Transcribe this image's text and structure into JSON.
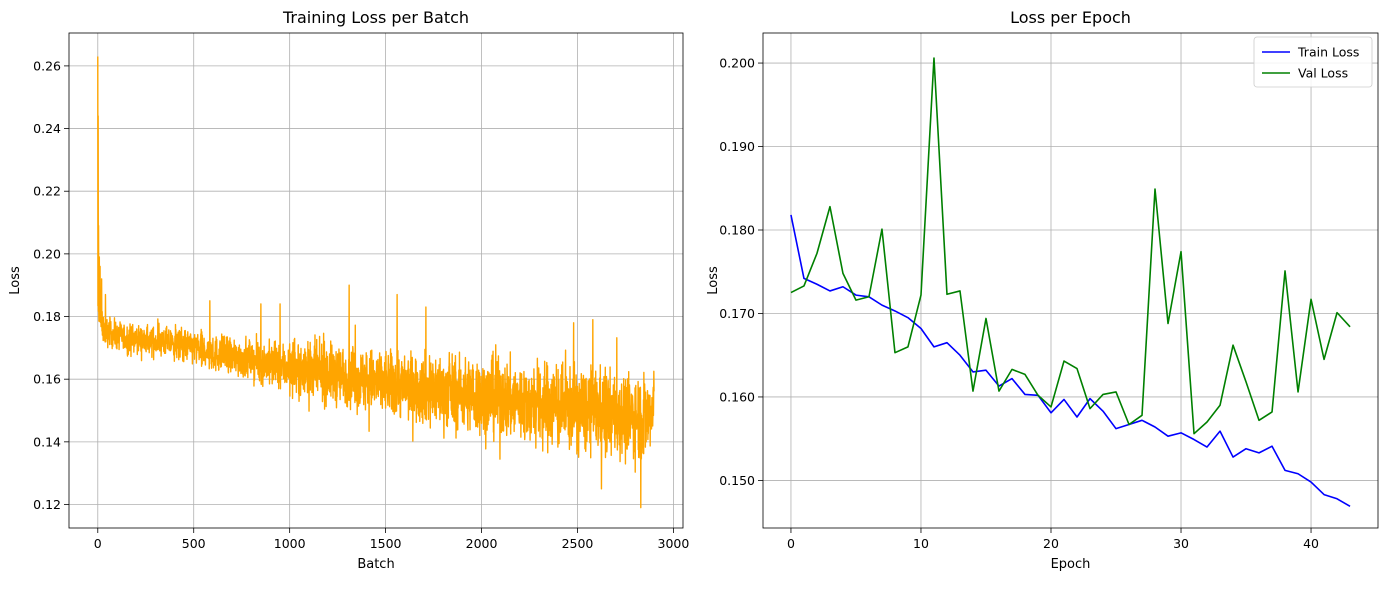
{
  "chart_data": [
    {
      "type": "line",
      "title": "Training Loss per Batch",
      "xlabel": "Batch",
      "ylabel": "Loss",
      "xlim": [
        -150,
        3050
      ],
      "ylim": [
        0.1125,
        0.2705
      ],
      "xticks": [
        0,
        500,
        1000,
        1500,
        2000,
        2500,
        3000
      ],
      "yticks": [
        0.12,
        0.14,
        0.16,
        0.18,
        0.2,
        0.22,
        0.24,
        0.26
      ],
      "xtick_labels": [
        "0",
        "500",
        "1000",
        "1500",
        "2000",
        "2500",
        "3000"
      ],
      "ytick_labels": [
        "0.12",
        "0.14",
        "0.16",
        "0.18",
        "0.20",
        "0.22",
        "0.24",
        "0.26"
      ],
      "grid": true,
      "color": "#ffa500",
      "series": [
        {
          "n_points": 2900,
          "x": [
            0,
            25,
            50,
            100,
            150,
            200,
            250,
            300,
            350,
            400,
            450,
            500,
            550,
            600,
            650,
            700,
            750,
            800,
            850,
            900,
            950,
            1000,
            1050,
            1100,
            1150,
            1200,
            1250,
            1300,
            1350,
            1400,
            1450,
            1500,
            1550,
            1600,
            1650,
            1700,
            1750,
            1800,
            1850,
            1900,
            1950,
            2000,
            2050,
            2100,
            2150,
            2200,
            2250,
            2300,
            2350,
            2400,
            2450,
            2500,
            2550,
            2600,
            2650,
            2700,
            2750,
            2800,
            2850,
            2900
          ],
          "values": [
            0.182,
            0.176,
            0.175,
            0.174,
            0.173,
            0.173,
            0.172,
            0.172,
            0.172,
            0.171,
            0.171,
            0.17,
            0.169,
            0.168,
            0.168,
            0.167,
            0.167,
            0.166,
            0.165,
            0.165,
            0.164,
            0.164,
            0.163,
            0.163,
            0.162,
            0.162,
            0.161,
            0.161,
            0.16,
            0.16,
            0.159,
            0.159,
            0.158,
            0.158,
            0.157,
            0.157,
            0.157,
            0.156,
            0.156,
            0.155,
            0.155,
            0.154,
            0.154,
            0.154,
            0.153,
            0.153,
            0.152,
            0.152,
            0.152,
            0.151,
            0.151,
            0.15,
            0.15,
            0.15,
            0.149,
            0.149,
            0.148,
            0.148,
            0.148,
            0.148
          ],
          "noise_amplitude": [
            0.004,
            0.004,
            0.005,
            0.006,
            0.008,
            0.009,
            0.01,
            0.011,
            0.012,
            0.012,
            0.012
          ],
          "spikes": [
            [
              0,
              0.263
            ],
            [
              2,
              0.244
            ],
            [
              4,
              0.209
            ],
            [
              8,
              0.199
            ],
            [
              12,
              0.196
            ],
            [
              20,
              0.192
            ],
            [
              40,
              0.187
            ],
            [
              584,
              0.185
            ],
            [
              850,
              0.184
            ],
            [
              950,
              0.184
            ],
            [
              1310,
              0.19
            ],
            [
              1560,
              0.187
            ],
            [
              1710,
              0.183
            ],
            [
              2480,
              0.178
            ],
            [
              2580,
              0.179
            ]
          ],
          "dips": [
            [
              2625,
              0.125
            ],
            [
              2830,
              0.119
            ]
          ]
        }
      ]
    },
    {
      "type": "line",
      "title": "Loss per Epoch",
      "xlabel": "Epoch",
      "ylabel": "Loss",
      "xlim": [
        -2.15,
        45.15
      ],
      "ylim": [
        0.1443,
        0.2036
      ],
      "xticks": [
        0,
        10,
        20,
        30,
        40
      ],
      "yticks": [
        0.15,
        0.16,
        0.17,
        0.18,
        0.19,
        0.2
      ],
      "xtick_labels": [
        "0",
        "10",
        "20",
        "30",
        "40"
      ],
      "ytick_labels": [
        "0.150",
        "0.160",
        "0.170",
        "0.180",
        "0.190",
        "0.200"
      ],
      "grid": true,
      "legend": "top-right",
      "x": [
        0,
        1,
        2,
        3,
        4,
        5,
        6,
        7,
        8,
        9,
        10,
        11,
        12,
        13,
        14,
        15,
        16,
        17,
        18,
        19,
        20,
        21,
        22,
        23,
        24,
        25,
        26,
        27,
        28,
        29,
        30,
        31,
        32,
        33,
        34,
        35,
        36,
        37,
        38,
        39,
        40,
        41,
        42,
        43
      ],
      "series": [
        {
          "name": "Train Loss",
          "color": "#0000ff",
          "values": [
            0.1818,
            0.1742,
            0.1735,
            0.1727,
            0.1732,
            0.1722,
            0.172,
            0.171,
            0.1703,
            0.1695,
            0.1682,
            0.166,
            0.1665,
            0.165,
            0.163,
            0.1632,
            0.1613,
            0.1622,
            0.1603,
            0.1602,
            0.1581,
            0.1597,
            0.1576,
            0.1598,
            0.1583,
            0.1562,
            0.1567,
            0.1572,
            0.1564,
            0.1553,
            0.1557,
            0.1549,
            0.154,
            0.1559,
            0.1528,
            0.1538,
            0.1533,
            0.1541,
            0.1512,
            0.1508,
            0.1498,
            0.1483,
            0.1478,
            0.1469
          ]
        },
        {
          "name": "Val Loss",
          "color": "#008000",
          "values": [
            0.1725,
            0.1733,
            0.1772,
            0.1828,
            0.1748,
            0.1716,
            0.172,
            0.1801,
            0.1653,
            0.166,
            0.1722,
            0.2006,
            0.1723,
            0.1727,
            0.1607,
            0.1694,
            0.1607,
            0.1633,
            0.1627,
            0.1602,
            0.1588,
            0.1643,
            0.1634,
            0.1586,
            0.1603,
            0.1606,
            0.1567,
            0.1578,
            0.1849,
            0.1688,
            0.1774,
            0.1556,
            0.157,
            0.159,
            0.1662,
            0.1618,
            0.1572,
            0.1582,
            0.1751,
            0.1606,
            0.1717,
            0.1645,
            0.1701,
            0.1684
          ]
        }
      ]
    }
  ]
}
